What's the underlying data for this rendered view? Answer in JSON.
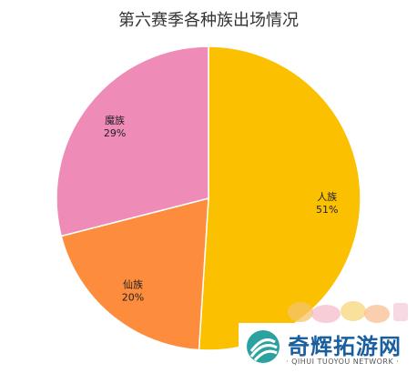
{
  "chart_data": {
    "type": "pie",
    "title": "第六赛季各种族出场情况",
    "slices": [
      {
        "name": "人族",
        "value": 51,
        "label": "51%",
        "color": "#fbc100"
      },
      {
        "name": "仙族",
        "value": 20,
        "label": "20%",
        "color": "#fd8c3c"
      },
      {
        "name": "魔族",
        "value": 29,
        "label": "29%",
        "color": "#ef8bb7"
      }
    ],
    "start": "top, clockwise"
  },
  "watermark": {
    "name": "奇辉拓游网",
    "sub": "· QIHUI TUOYOU NETWORK ·"
  }
}
